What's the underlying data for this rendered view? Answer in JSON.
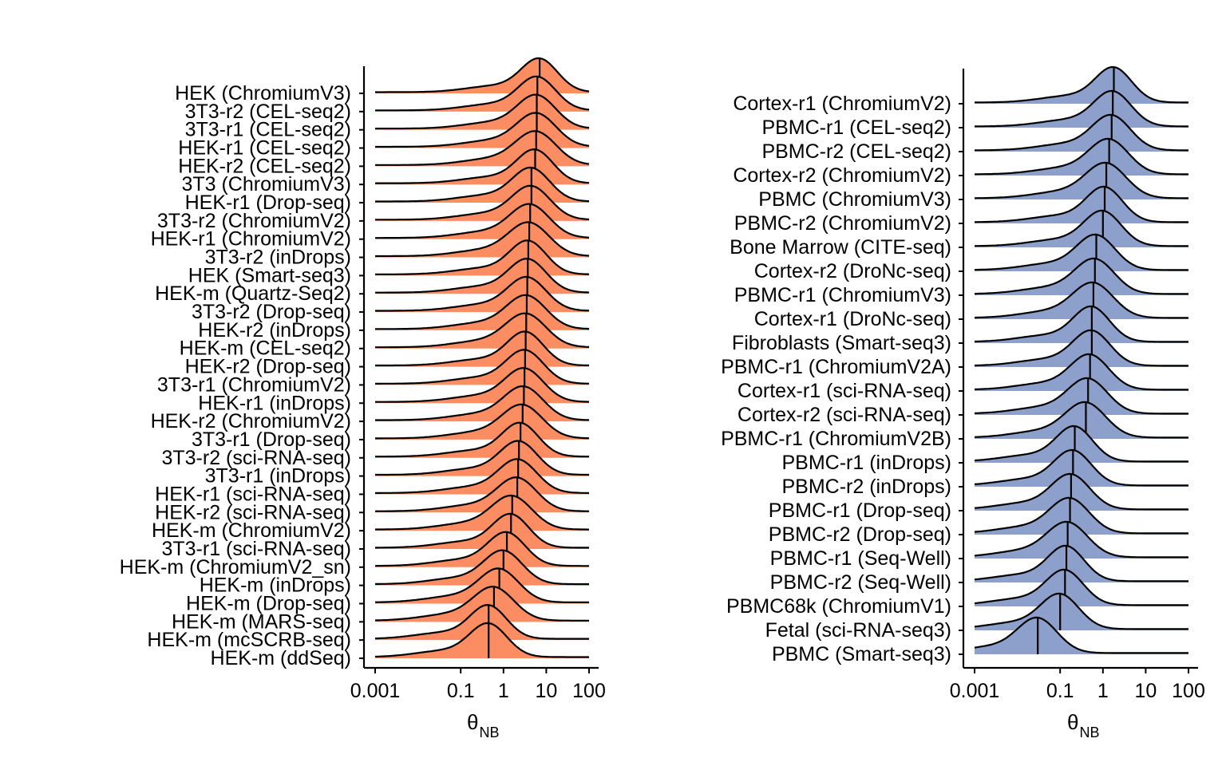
{
  "chart_data": [
    {
      "type": "ridgeline",
      "title": "",
      "xlabel": "θ",
      "xlabel_sub": "NB",
      "xscale": "log10",
      "xlim": [
        0.001,
        100
      ],
      "xticks": [
        0.001,
        0.1,
        1,
        10,
        100
      ],
      "xtick_labels": [
        "0.001",
        "0.1",
        "1",
        "10",
        "100"
      ],
      "fill_color": "#FC8D62",
      "series": [
        {
          "name": "HEK (ChromiumV3)",
          "median": 7.0
        },
        {
          "name": "3T3-r2 (CEL-seq2)",
          "median": 6.2
        },
        {
          "name": "3T3-r1 (CEL-seq2)",
          "median": 6.0
        },
        {
          "name": "HEK-r1 (CEL-seq2)",
          "median": 6.0
        },
        {
          "name": "HEK-r2 (CEL-seq2)",
          "median": 5.8
        },
        {
          "name": "3T3 (ChromiumV3)",
          "median": 5.5
        },
        {
          "name": "HEK-r1 (Drop-seq)",
          "median": 4.5
        },
        {
          "name": "3T3-r2 (ChromiumV2)",
          "median": 4.5
        },
        {
          "name": "HEK-r1 (ChromiumV2)",
          "median": 4.2
        },
        {
          "name": "3T3-r2 (inDrops)",
          "median": 4.0
        },
        {
          "name": "HEK (Smart-seq3)",
          "median": 3.8
        },
        {
          "name": "HEK-m (Quartz-Seq2)",
          "median": 3.7
        },
        {
          "name": "3T3-r2 (Drop-seq)",
          "median": 3.6
        },
        {
          "name": "HEK-r2 (inDrops)",
          "median": 3.5
        },
        {
          "name": "HEK-m (CEL-seq2)",
          "median": 3.4
        },
        {
          "name": "HEK-r2 (Drop-seq)",
          "median": 3.3
        },
        {
          "name": "3T3-r1 (ChromiumV2)",
          "median": 3.2
        },
        {
          "name": "HEK-r1 (inDrops)",
          "median": 3.1
        },
        {
          "name": "HEK-r2 (ChromiumV2)",
          "median": 3.0
        },
        {
          "name": "3T3-r1 (Drop-seq)",
          "median": 2.8
        },
        {
          "name": "3T3-r2 (sci-RNA-seq)",
          "median": 2.5
        },
        {
          "name": "3T3-r1 (inDrops)",
          "median": 2.3
        },
        {
          "name": "HEK-r1 (sci-RNA-seq)",
          "median": 2.2
        },
        {
          "name": "HEK-r2 (sci-RNA-seq)",
          "median": 2.1
        },
        {
          "name": "HEK-m (ChromiumV2)",
          "median": 1.6
        },
        {
          "name": "3T3-r1 (sci-RNA-seq)",
          "median": 1.5
        },
        {
          "name": "HEK-m (ChromiumV2_sn)",
          "median": 1.2
        },
        {
          "name": "HEK-m (inDrops)",
          "median": 1.0
        },
        {
          "name": "HEK-m (Drop-seq)",
          "median": 0.8
        },
        {
          "name": "HEK-m (MARS-seq)",
          "median": 0.6
        },
        {
          "name": "HEK-m (mcSCRB-seq)",
          "median": 0.45
        },
        {
          "name": "HEK-m (ddSeq)",
          "median": 0.45
        }
      ]
    },
    {
      "type": "ridgeline",
      "title": "",
      "xlabel": "θ",
      "xlabel_sub": "NB",
      "xscale": "log10",
      "xlim": [
        0.001,
        100
      ],
      "xticks": [
        0.001,
        0.1,
        1,
        10,
        100
      ],
      "xtick_labels": [
        "0.001",
        "0.1",
        "1",
        "10",
        "100"
      ],
      "fill_color": "#8DA0CB",
      "series": [
        {
          "name": "Cortex-r1 (ChromiumV2)",
          "median": 1.8
        },
        {
          "name": "PBMC-r1 (CEL-seq2)",
          "median": 1.7
        },
        {
          "name": "PBMC-r2 (CEL-seq2)",
          "median": 1.6
        },
        {
          "name": "Cortex-r2 (ChromiumV2)",
          "median": 1.4
        },
        {
          "name": "PBMC (ChromiumV3)",
          "median": 1.2
        },
        {
          "name": "PBMC-r2 (ChromiumV2)",
          "median": 1.1
        },
        {
          "name": "Bone Marrow (CITE-seq)",
          "median": 1.0
        },
        {
          "name": "Cortex-r2 (DroNc-seq)",
          "median": 0.7
        },
        {
          "name": "PBMC-r1 (ChromiumV3)",
          "median": 0.65
        },
        {
          "name": "Cortex-r1 (DroNc-seq)",
          "median": 0.6
        },
        {
          "name": "Fibroblasts (Smart-seq3)",
          "median": 0.55
        },
        {
          "name": "PBMC-r1 (ChromiumV2A)",
          "median": 0.55
        },
        {
          "name": "Cortex-r1 (sci-RNA-seq)",
          "median": 0.5
        },
        {
          "name": "Cortex-r2 (sci-RNA-seq)",
          "median": 0.45
        },
        {
          "name": "PBMC-r1 (ChromiumV2B)",
          "median": 0.4
        },
        {
          "name": "PBMC-r1 (inDrops)",
          "median": 0.22
        },
        {
          "name": "PBMC-r2 (inDrops)",
          "median": 0.2
        },
        {
          "name": "PBMC-r1 (Drop-seq)",
          "median": 0.18
        },
        {
          "name": "PBMC-r2 (Drop-seq)",
          "median": 0.17
        },
        {
          "name": "PBMC-r1 (Seq-Well)",
          "median": 0.15
        },
        {
          "name": "PBMC-r2 (Seq-Well)",
          "median": 0.14
        },
        {
          "name": "PBMC68k (ChromiumV1)",
          "median": 0.13
        },
        {
          "name": "Fetal (sci-RNA-seq3)",
          "median": 0.1
        },
        {
          "name": "PBMC (Smart-seq3)",
          "median": 0.03
        }
      ]
    }
  ]
}
